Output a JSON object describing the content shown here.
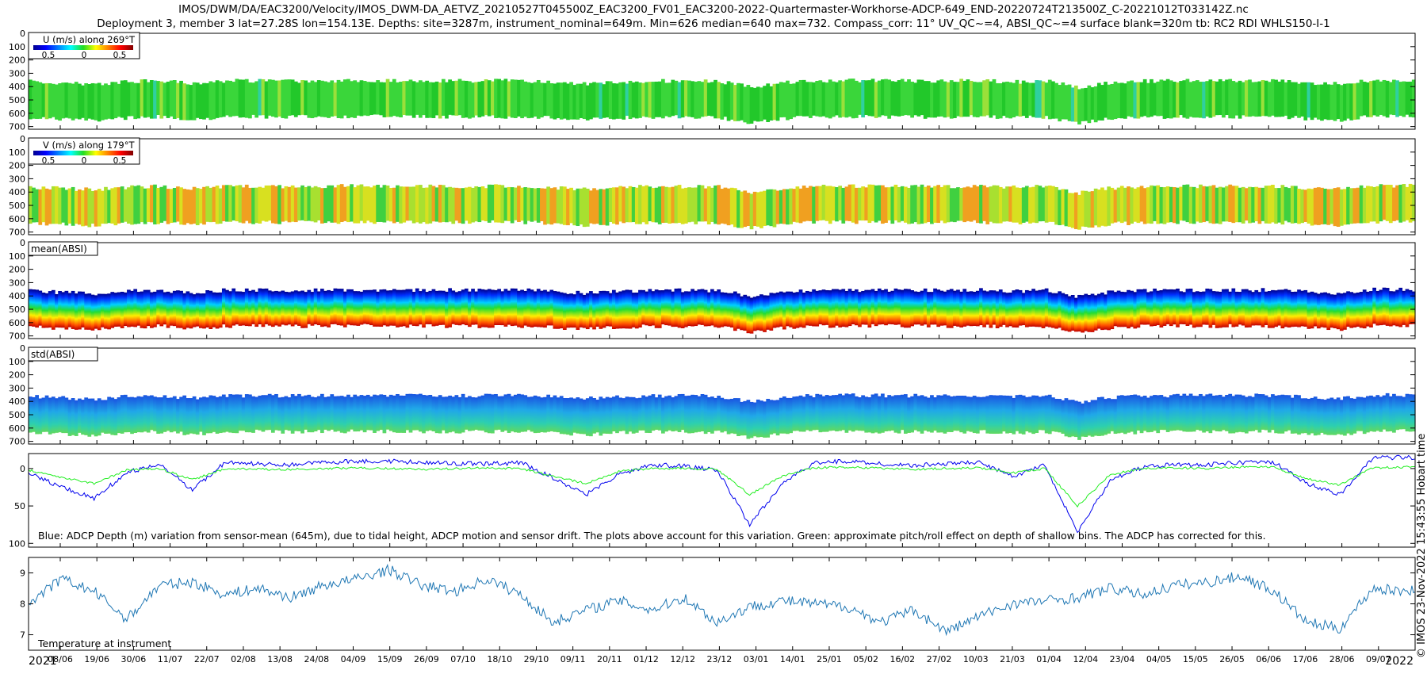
{
  "header": {
    "title_line1": "IMOS/DWM/DA/EAC3200/Velocity/IMOS_DWM-DA_AETVZ_20210527T045500Z_EAC3200_FV01_EAC3200-2022-Quartermaster-Workhorse-ADCP-649_END-20220724T213500Z_C-20221012T033142Z.nc",
    "title_line2": "Deployment 3, member 3 lat=27.28S lon=154.13E. Depths: site=3287m, instrument_nominal=649m. Min=626 median=640 max=732. Compass_corr: 11° UV_QC~=4, ABSI_QC~=4 surface blank=320m tb: RC2 RDI WHLS150-I-1"
  },
  "footer": {
    "copyright": "© IMOS 23-Nov-2022 15:43:55 Hobart time"
  },
  "chart_data": [
    {
      "type": "heatmap",
      "title": "U (m/s) along 269°T",
      "colorbar_ticks": [
        "0.5",
        "0",
        "0.5"
      ],
      "y_ticks": [
        "0",
        "100",
        "200",
        "300",
        "400",
        "500",
        "600",
        "700"
      ],
      "ylim": [
        0,
        720
      ],
      "colormap": "jet",
      "dominant_color": "green"
    },
    {
      "type": "heatmap",
      "title": "V (m/s) along 179°T",
      "colorbar_ticks": [
        "0.5",
        "0",
        "0.5"
      ],
      "y_ticks": [
        "0",
        "100",
        "200",
        "300",
        "400",
        "500",
        "600",
        "700"
      ],
      "ylim": [
        0,
        720
      ],
      "colormap": "jet",
      "dominant_color": "yellow"
    },
    {
      "type": "heatmap",
      "title": "mean(ABSI)",
      "y_ticks": [
        "0",
        "100",
        "200",
        "300",
        "400",
        "500",
        "600",
        "700"
      ],
      "ylim": [
        0,
        720
      ],
      "colormap": "jet"
    },
    {
      "type": "heatmap",
      "title": "std(ABSI)",
      "y_ticks": [
        "0",
        "100",
        "200",
        "300",
        "400",
        "500",
        "600",
        "700"
      ],
      "ylim": [
        0,
        720
      ],
      "colormap": "jet"
    },
    {
      "type": "line",
      "annotation": "Blue: ADCP Depth (m) variation from sensor-mean (645m), due to tidal height, ADCP motion and sensor drift. The plots above account for this variation. Green: approximate pitch/roll effect on depth of shallow bins. The ADCP has corrected for this.",
      "y_ticks": [
        "0",
        "50",
        "100"
      ],
      "ylim": [
        -20,
        105
      ],
      "series": [
        {
          "color": "#0000ee",
          "x": [
            0,
            10,
            20,
            30,
            40,
            50,
            60,
            70,
            80,
            90,
            100,
            110,
            120,
            130,
            140,
            150,
            160,
            170,
            180,
            190,
            200,
            210,
            220,
            230,
            240,
            250,
            260,
            270,
            280,
            290,
            300,
            310,
            320,
            330,
            340,
            350,
            360,
            370,
            380,
            390,
            400,
            410,
            420,
            423
          ],
          "values": [
            5,
            25,
            40,
            5,
            -5,
            28,
            -8,
            -6,
            -5,
            -8,
            -10,
            -10,
            -8,
            -7,
            -6,
            -8,
            12,
            35,
            8,
            -5,
            -3,
            2,
            75,
            20,
            -8,
            -10,
            -6,
            -4,
            -6,
            -8,
            10,
            -4,
            85,
            15,
            -2,
            -6,
            -5,
            -8,
            -8,
            20,
            35,
            -14,
            -15,
            -14
          ]
        },
        {
          "color": "#22ee22",
          "x": [
            0,
            10,
            20,
            30,
            40,
            50,
            60,
            70,
            80,
            90,
            100,
            110,
            120,
            130,
            140,
            150,
            160,
            170,
            180,
            190,
            200,
            210,
            220,
            230,
            240,
            250,
            260,
            270,
            280,
            290,
            300,
            310,
            320,
            330,
            340,
            350,
            360,
            370,
            380,
            390,
            400,
            410,
            420,
            423
          ],
          "values": [
            2,
            12,
            20,
            2,
            0,
            15,
            0,
            1,
            1,
            0,
            -1,
            0,
            1,
            0,
            -1,
            0,
            10,
            20,
            4,
            0,
            0,
            1,
            35,
            10,
            -1,
            -2,
            0,
            1,
            0,
            -1,
            6,
            0,
            50,
            8,
            0,
            -1,
            0,
            -2,
            -2,
            14,
            22,
            -1,
            -2,
            -2
          ]
        }
      ]
    },
    {
      "type": "line",
      "annotation": "Temperature at instrument",
      "y_ticks": [
        "7",
        "8",
        "9"
      ],
      "ylim": [
        6.5,
        9.5
      ],
      "series": [
        {
          "color": "#1f77b4",
          "x": [
            0,
            10,
            20,
            30,
            40,
            50,
            60,
            70,
            80,
            90,
            100,
            110,
            120,
            130,
            140,
            150,
            160,
            170,
            180,
            190,
            200,
            210,
            220,
            230,
            240,
            250,
            260,
            270,
            280,
            290,
            300,
            310,
            320,
            330,
            340,
            350,
            360,
            370,
            380,
            390,
            400,
            410,
            420,
            423
          ],
          "values": [
            8.0,
            8.8,
            8.4,
            7.5,
            8.6,
            8.7,
            8.3,
            8.5,
            8.2,
            8.6,
            8.8,
            9.1,
            8.6,
            8.4,
            8.8,
            8.3,
            7.4,
            7.8,
            8.1,
            7.8,
            8.2,
            7.4,
            7.9,
            8.1,
            8.0,
            7.9,
            7.4,
            7.8,
            7.1,
            7.6,
            8.0,
            8.1,
            8.2,
            8.5,
            8.3,
            8.6,
            8.7,
            8.9,
            8.4,
            7.4,
            7.2,
            8.5,
            8.4,
            8.5
          ]
        }
      ]
    }
  ],
  "time_axis": {
    "start_label": "2021",
    "end_label": "2022",
    "tick_labels": [
      "08/06",
      "19/06",
      "30/06",
      "11/07",
      "22/07",
      "02/08",
      "13/08",
      "24/08",
      "04/09",
      "15/09",
      "26/09",
      "07/10",
      "18/10",
      "29/10",
      "09/11",
      "20/11",
      "01/12",
      "12/12",
      "23/12",
      "03/01",
      "14/01",
      "25/01",
      "05/02",
      "16/02",
      "27/02",
      "10/03",
      "21/03",
      "01/04",
      "12/04",
      "23/04",
      "04/05",
      "15/05",
      "26/05",
      "06/06",
      "17/06",
      "28/06",
      "09/07"
    ]
  }
}
